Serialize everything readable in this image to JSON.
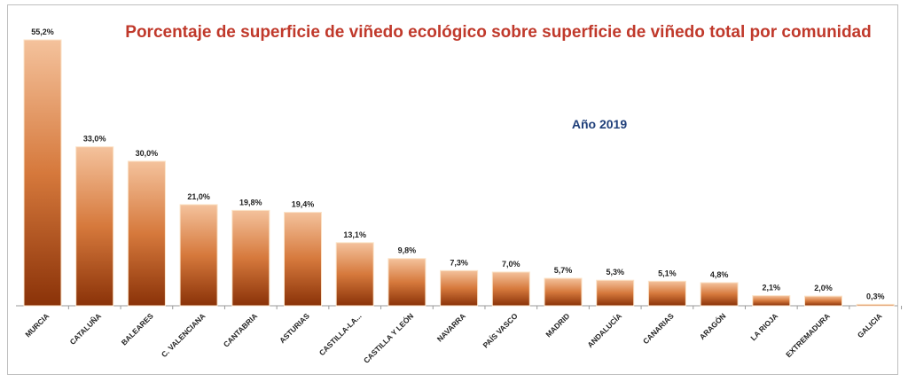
{
  "chart_data": {
    "type": "bar",
    "title": "Porcentaje de superficie de viñedo ecológico sobre superficie de viñedo total por comunidad",
    "subtitle": "Año 2019",
    "xlabel": "",
    "ylabel": "",
    "ylim": [
      0,
      55.2
    ],
    "grid": false,
    "categories": [
      "MURCIA",
      "CATALUÑA",
      "BALEARES",
      "C. VALENCIANA",
      "CANTABRIA",
      "ASTURIAS",
      "CASTILLA-LA...",
      "CASTILLA Y LEÓN",
      "NAVARRA",
      "PAÍS VASCO",
      "MADRID",
      "ANDALUCÍA",
      "CANARIAS",
      "ARAGÓN",
      "LA RIOJA",
      "EXTREMADURA",
      "GALICIA"
    ],
    "values": [
      55.2,
      33.0,
      30.0,
      21.0,
      19.8,
      19.4,
      13.1,
      9.8,
      7.3,
      7.0,
      5.7,
      5.3,
      5.1,
      4.8,
      2.1,
      2.0,
      0.3
    ],
    "data_labels": [
      "55,2%",
      "33,0%",
      "30,0%",
      "21,0%",
      "19,8%",
      "19,4%",
      "13,1%",
      "9,8%",
      "7,3%",
      "7,0%",
      "5,7%",
      "5,3%",
      "5,1%",
      "4,8%",
      "2,1%",
      "2,0%",
      "0,3%"
    ],
    "colors": {
      "bar_top": "#f2b98c",
      "bar_bottom": "#8a3208",
      "title": "#c0392b",
      "subtitle": "#1f3f7a"
    }
  }
}
